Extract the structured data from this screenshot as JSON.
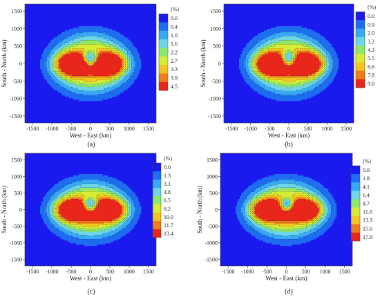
{
  "chart_data": [
    {
      "type": "heatmap",
      "panel_label": "(a)",
      "xlabel": "West - East (km)",
      "ylabel": "South - North (km)",
      "xlim": [
        -1700,
        1700
      ],
      "ylim": [
        -1700,
        1700
      ],
      "xticks": [
        -1500,
        -1000,
        -500,
        0,
        500,
        1000,
        1500
      ],
      "yticks": [
        -1500,
        -1000,
        -500,
        0,
        500,
        1000,
        1500
      ],
      "colorbar_unit": "(%)",
      "colorbar_levels": [
        "0.0",
        "0.4",
        "1.0",
        "1.6",
        "2.2",
        "2.7",
        "3.3",
        "3.9",
        "4.5"
      ],
      "max_value": 4.5
    },
    {
      "type": "heatmap",
      "panel_label": "(b)",
      "xlabel": "West - East (km)",
      "ylabel": "South - North (km)",
      "xlim": [
        -1700,
        1700
      ],
      "ylim": [
        -1700,
        1700
      ],
      "xticks": [
        -1500,
        -1000,
        -500,
        0,
        500,
        1000,
        1500
      ],
      "yticks": [
        -1500,
        -1000,
        -500,
        0,
        500,
        1000,
        1500
      ],
      "colorbar_unit": "(%)",
      "colorbar_levels": [
        "0.0",
        "0.9",
        "2.0",
        "3.2",
        "4.3",
        "5.5",
        "6.6",
        "7.8",
        "9.0"
      ],
      "max_value": 9.0
    },
    {
      "type": "heatmap",
      "panel_label": "(c)",
      "xlabel": "West - East (km)",
      "ylabel": "South - North (km)",
      "xlim": [
        -1700,
        1700
      ],
      "ylim": [
        -1700,
        1700
      ],
      "xticks": [
        -1500,
        -1000,
        -500,
        0,
        500,
        1000,
        1500
      ],
      "yticks": [
        -1500,
        -1000,
        -500,
        0,
        500,
        1000,
        1500
      ],
      "colorbar_unit": "(%)",
      "colorbar_levels": [
        "0.0",
        "1.3",
        "3.1",
        "4.8",
        "6.5",
        "8.2",
        "10.0",
        "11.7",
        "13.4"
      ],
      "max_value": 13.4
    },
    {
      "type": "heatmap",
      "panel_label": "(d)",
      "xlabel": "West - East (km)",
      "ylabel": "South - North (km)",
      "xlim": [
        -1700,
        1700
      ],
      "ylim": [
        -1700,
        1700
      ],
      "xticks": [
        -1500,
        -1000,
        -500,
        0,
        500,
        1000,
        1500
      ],
      "yticks": [
        -1500,
        -1000,
        -500,
        0,
        500,
        1000,
        1500
      ],
      "colorbar_unit": "(%)",
      "colorbar_levels": [
        "0.0",
        "1.8",
        "4.1",
        "6.4",
        "8.7",
        "11.0",
        "13.3",
        "15.6",
        "17.9"
      ],
      "max_value": 17.9
    }
  ],
  "colors": {
    "levels": [
      "#1a1aee",
      "#1e6cf0",
      "#37a9f5",
      "#6fd6e8",
      "#8ee86a",
      "#d6ec36",
      "#f3c51e",
      "#ef7d1b",
      "#e8261a"
    ],
    "background": "#1a1aee",
    "contour_line": "#1b1b1b"
  }
}
